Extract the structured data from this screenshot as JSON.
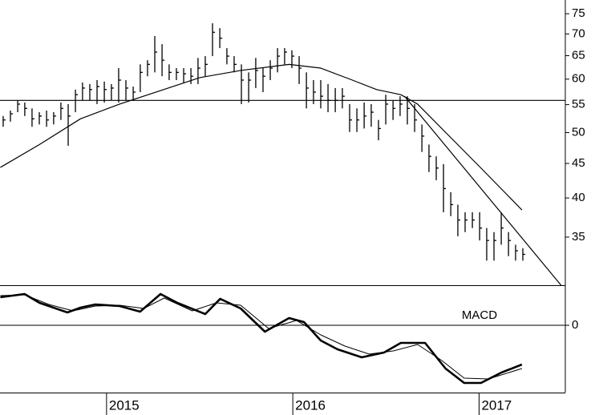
{
  "chart_data": [
    {
      "type": "ohlc",
      "log": true,
      "color": "#000000",
      "xlim": [
        2014.428,
        2017.463
      ],
      "ylim": [
        29.7,
        78.6
      ],
      "yticks": [
        35,
        40,
        45,
        50,
        55,
        60,
        65,
        70,
        75
      ],
      "x": [
        2014.445,
        2014.484,
        2014.523,
        2014.561,
        2014.6,
        2014.639,
        2014.678,
        2014.716,
        2014.755,
        2014.794,
        2014.833,
        2014.871,
        2014.91,
        2014.949,
        2014.988,
        2015.026,
        2015.065,
        2015.104,
        2015.143,
        2015.181,
        2015.22,
        2015.259,
        2015.298,
        2015.336,
        2015.375,
        2015.414,
        2015.453,
        2015.491,
        2015.53,
        2015.569,
        2015.608,
        2015.646,
        2015.685,
        2015.724,
        2015.763,
        2015.801,
        2015.84,
        2015.879,
        2015.918,
        2015.956,
        2015.995,
        2016.034,
        2016.073,
        2016.111,
        2016.15,
        2016.189,
        2016.228,
        2016.266,
        2016.305,
        2016.344,
        2016.383,
        2016.421,
        2016.46,
        2016.499,
        2016.538,
        2016.576,
        2016.615,
        2016.654,
        2016.693,
        2016.731,
        2016.77,
        2016.809,
        2016.848,
        2016.886,
        2016.925,
        2016.964,
        2017.003,
        2017.041,
        2017.08,
        2017.119,
        2017.158,
        2017.196,
        2017.235
      ],
      "high": [
        52.9,
        53.9,
        55.8,
        55.4,
        54.3,
        53.6,
        53.9,
        53.6,
        55.4,
        55.1,
        57.9,
        59.3,
        59.0,
        59.8,
        59.5,
        59.0,
        62.3,
        59.8,
        58.5,
        63.1,
        64.0,
        69.5,
        67.6,
        63.1,
        62.3,
        62.3,
        62.3,
        64.5,
        64.9,
        72.6,
        71.4,
        66.7,
        64.9,
        63.1,
        61.4,
        64.5,
        62.3,
        64.0,
        66.7,
        66.7,
        66.2,
        64.9,
        61.4,
        59.8,
        59.8,
        59.0,
        58.2,
        58.2,
        55.1,
        54.3,
        55.4,
        55.1,
        52.2,
        56.9,
        55.8,
        56.6,
        56.6,
        55.1,
        51.4,
        48.0,
        46.1,
        44.9,
        40.8,
        39.1,
        38.1,
        38.1,
        38.1,
        36.1,
        35.6,
        38.1,
        35.6,
        34.1,
        33.7
      ],
      "low": [
        51.0,
        51.9,
        53.6,
        52.9,
        51.0,
        51.4,
        51.0,
        51.4,
        52.2,
        47.8,
        53.6,
        55.8,
        55.8,
        55.1,
        55.4,
        55.8,
        55.4,
        55.8,
        55.8,
        57.4,
        60.6,
        61.4,
        60.6,
        59.8,
        59.8,
        59.3,
        59.0,
        59.0,
        60.6,
        64.9,
        66.7,
        63.1,
        61.4,
        55.1,
        55.4,
        58.2,
        57.4,
        59.8,
        61.4,
        63.1,
        62.3,
        59.0,
        54.3,
        55.1,
        54.3,
        53.6,
        53.6,
        54.3,
        50.1,
        50.1,
        50.7,
        51.0,
        48.7,
        51.4,
        52.2,
        52.9,
        51.4,
        50.1,
        46.8,
        43.7,
        42.5,
        38.1,
        37.6,
        35.1,
        35.6,
        36.1,
        34.6,
        32.3,
        32.3,
        34.1,
        32.8,
        32.3,
        32.3
      ],
      "close": [
        52.2,
        53.3,
        55.1,
        54.3,
        52.4,
        52.9,
        52.2,
        52.9,
        54.3,
        52.9,
        56.9,
        58.2,
        57.9,
        58.5,
        57.9,
        58.2,
        59.8,
        58.2,
        57.4,
        61.4,
        63.1,
        65.8,
        64.0,
        61.4,
        61.4,
        61.1,
        60.6,
        62.3,
        63.1,
        70.4,
        69.0,
        64.9,
        63.1,
        59.8,
        59.8,
        61.8,
        60.6,
        62.3,
        64.9,
        65.8,
        64.9,
        62.3,
        58.2,
        57.4,
        56.6,
        55.8,
        55.8,
        56.6,
        52.2,
        52.2,
        52.9,
        53.6,
        50.7,
        55.1,
        54.3,
        55.1,
        54.3,
        52.2,
        49.4,
        46.1,
        44.3,
        41.3,
        39.1,
        37.1,
        37.1,
        37.1,
        36.1,
        34.6,
        34.6,
        36.1,
        34.6,
        33.4,
        33.0
      ],
      "average": {
        "x": [
          2014.43,
          2014.64,
          2014.86,
          2015.07,
          2015.29,
          2015.5,
          2015.72,
          2015.98,
          2016.15,
          2016.32,
          2016.45,
          2016.58,
          2016.67,
          2016.84,
          2017.01,
          2017.23
        ],
        "values": [
          44.4,
          48.0,
          52.4,
          55.1,
          57.7,
          60.3,
          61.8,
          63.1,
          62.3,
          59.8,
          57.9,
          56.9,
          55.1,
          49.4,
          44.3,
          38.4
        ]
      },
      "hline": 55.8,
      "trend": {
        "x": [
          2016.6,
          2017.44
        ],
        "values": [
          56.6,
          29.7
        ]
      }
    },
    {
      "type": "macd",
      "label": "MACD",
      "xlim": [
        2014.428,
        2017.463
      ],
      "ylim": [
        -3.36,
        2
      ],
      "xticks": [
        2015,
        2016,
        2017
      ],
      "yticks": [
        0
      ],
      "macd": {
        "x": [
          2014.43,
          2014.56,
          2014.64,
          2014.79,
          2014.86,
          2014.94,
          2015.07,
          2015.18,
          2015.29,
          2015.38,
          2015.53,
          2015.61,
          2015.72,
          2015.85,
          2015.98,
          2016.06,
          2016.15,
          2016.24,
          2016.37,
          2016.49,
          2016.58,
          2016.71,
          2016.82,
          2016.92,
          2017.01,
          2017.12,
          2017.23
        ],
        "values": [
          1.4,
          1.56,
          1.12,
          0.64,
          0.88,
          1.04,
          0.96,
          0.68,
          1.56,
          1.12,
          0.56,
          1.32,
          0.84,
          -0.32,
          0.36,
          0.16,
          -0.76,
          -1.2,
          -1.6,
          -1.36,
          -0.88,
          -0.88,
          -2.16,
          -2.88,
          -2.88,
          -2.36,
          -1.96
        ]
      },
      "signal": {
        "x": [
          2014.43,
          2014.56,
          2014.69,
          2014.82,
          2014.94,
          2015.07,
          2015.2,
          2015.31,
          2015.46,
          2015.59,
          2015.72,
          2015.87,
          2016.02,
          2016.15,
          2016.28,
          2016.41,
          2016.54,
          2016.67,
          2016.8,
          2016.92,
          2017.05,
          2017.23
        ],
        "values": [
          1.48,
          1.52,
          1.04,
          0.72,
          0.96,
          1.0,
          0.84,
          1.36,
          0.72,
          1.12,
          1.0,
          -0.16,
          0.24,
          -0.48,
          -1.04,
          -1.44,
          -1.28,
          -0.96,
          -1.76,
          -2.64,
          -2.68,
          -2.16
        ]
      }
    }
  ]
}
